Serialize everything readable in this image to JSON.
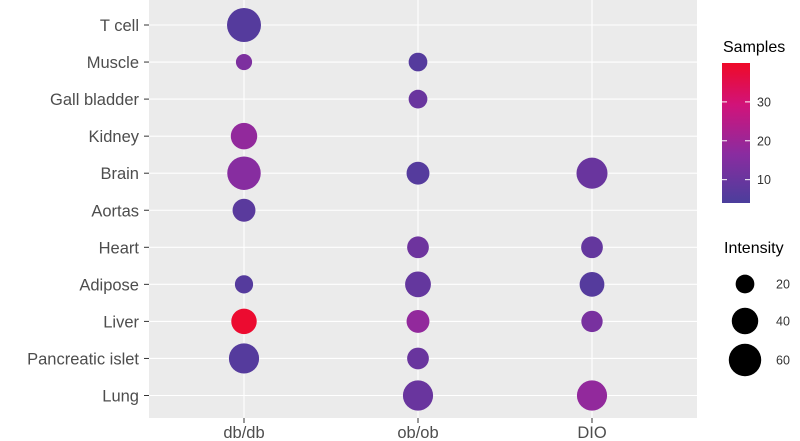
{
  "chart_data": {
    "type": "scatter",
    "x_categories": [
      "db/db",
      "ob/ob",
      "DIO"
    ],
    "y_categories": [
      "T cell",
      "Muscle",
      "Gall bladder",
      "Kidney",
      "Brain",
      "Aortas",
      "Heart",
      "Adipose",
      "Liver",
      "Pancreatic islet",
      "Lung"
    ],
    "points": [
      {
        "x": "db/db",
        "y": "T cell",
        "samples": 6,
        "intensity": 66
      },
      {
        "x": "db/db",
        "y": "Muscle",
        "samples": 14,
        "intensity": 15
      },
      {
        "x": "ob/ob",
        "y": "Muscle",
        "samples": 6,
        "intensity": 20
      },
      {
        "x": "ob/ob",
        "y": "Gall bladder",
        "samples": 10,
        "intensity": 20
      },
      {
        "x": "db/db",
        "y": "Kidney",
        "samples": 18,
        "intensity": 40
      },
      {
        "x": "db/db",
        "y": "Brain",
        "samples": 16,
        "intensity": 64
      },
      {
        "x": "ob/ob",
        "y": "Brain",
        "samples": 6,
        "intensity": 30
      },
      {
        "x": "DIO",
        "y": "Brain",
        "samples": 10,
        "intensity": 55
      },
      {
        "x": "db/db",
        "y": "Aortas",
        "samples": 7,
        "intensity": 30
      },
      {
        "x": "ob/ob",
        "y": "Heart",
        "samples": 11,
        "intensity": 27
      },
      {
        "x": "DIO",
        "y": "Heart",
        "samples": 9,
        "intensity": 27
      },
      {
        "x": "db/db",
        "y": "Adipose",
        "samples": 6,
        "intensity": 19
      },
      {
        "x": "ob/ob",
        "y": "Adipose",
        "samples": 9,
        "intensity": 38
      },
      {
        "x": "DIO",
        "y": "Adipose",
        "samples": 6,
        "intensity": 35
      },
      {
        "x": "db/db",
        "y": "Liver",
        "samples": 39,
        "intensity": 37
      },
      {
        "x": "ob/ob",
        "y": "Liver",
        "samples": 18,
        "intensity": 30
      },
      {
        "x": "DIO",
        "y": "Liver",
        "samples": 13,
        "intensity": 26
      },
      {
        "x": "db/db",
        "y": "Pancreatic islet",
        "samples": 6,
        "intensity": 52
      },
      {
        "x": "ob/ob",
        "y": "Pancreatic islet",
        "samples": 10,
        "intensity": 27
      },
      {
        "x": "ob/ob",
        "y": "Lung",
        "samples": 10,
        "intensity": 52
      },
      {
        "x": "DIO",
        "y": "Lung",
        "samples": 18,
        "intensity": 52
      }
    ],
    "color_legend": {
      "title": "Samples",
      "ticks": [
        10,
        20,
        30
      ],
      "range": [
        4,
        40
      ],
      "low_color": "#4b3e9c",
      "high_color": "#ef0a28"
    },
    "size_legend": {
      "title": "Intensity",
      "ticks": [
        20,
        40,
        60
      ],
      "range": [
        15,
        66
      ]
    },
    "grid": true,
    "panel_background": "#ebebeb",
    "legend_position": "right"
  }
}
